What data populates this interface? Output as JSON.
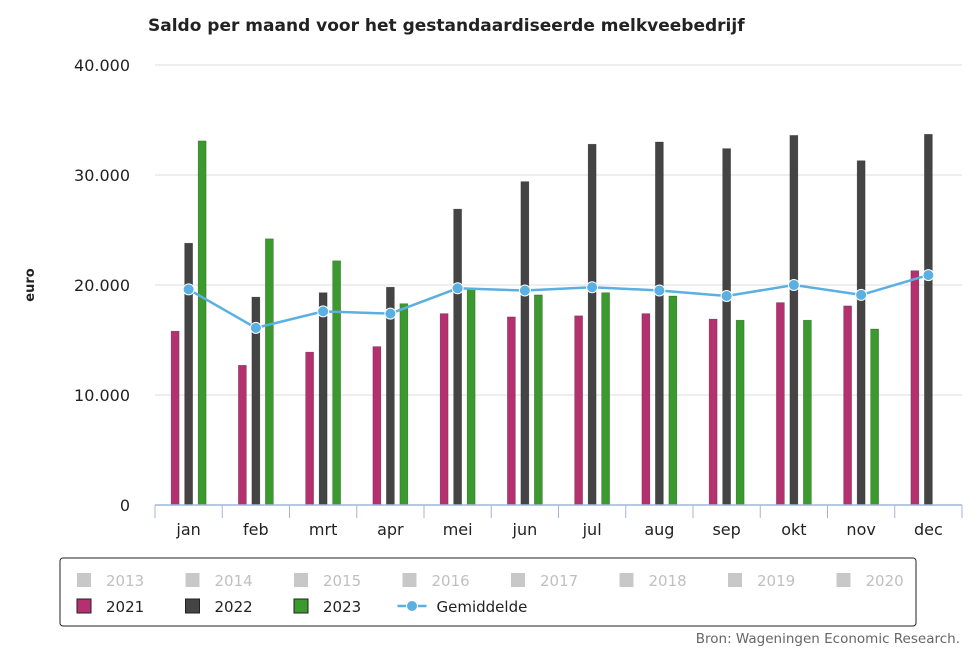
{
  "chart_data": {
    "type": "bar",
    "title": "Saldo per maand voor het gestandaardiseerde melkveebedrijf",
    "ylabel": "euro",
    "xlabel": "",
    "ylim": [
      0,
      40000
    ],
    "yticks": [
      0,
      10000,
      20000,
      30000,
      40000
    ],
    "ytick_labels": [
      "0",
      "10.000",
      "20.000",
      "30.000",
      "40.000"
    ],
    "grid": true,
    "categories": [
      "jan",
      "feb",
      "mrt",
      "apr",
      "mei",
      "jun",
      "jul",
      "aug",
      "sep",
      "okt",
      "nov",
      "dec"
    ],
    "series": [
      {
        "name": "2021",
        "type": "bar",
        "color": "#b5306e",
        "values": [
          15800,
          12700,
          13900,
          14400,
          17400,
          17100,
          17200,
          17400,
          16900,
          18400,
          18100,
          21300
        ]
      },
      {
        "name": "2022",
        "type": "bar",
        "color": "#444444",
        "values": [
          23800,
          18900,
          19300,
          19800,
          26900,
          29400,
          32800,
          33000,
          32400,
          33600,
          31300,
          33700
        ]
      },
      {
        "name": "2023",
        "type": "bar",
        "color": "#3a9a2e",
        "values": [
          33100,
          24200,
          22200,
          18300,
          19700,
          19100,
          19300,
          19000,
          16800,
          16800,
          16000,
          null
        ]
      },
      {
        "name": "Gemiddelde",
        "type": "line",
        "color": "#5ab0e2",
        "values": [
          19600,
          16100,
          17600,
          17400,
          19700,
          19500,
          19800,
          19500,
          19000,
          20000,
          19100,
          20900
        ]
      }
    ],
    "legend": {
      "placement": "bottom",
      "hidden_items": [
        "2013",
        "2014",
        "2015",
        "2016",
        "2017",
        "2018",
        "2019",
        "2020"
      ],
      "hidden_color": "#c8c8c8",
      "active_items": [
        "2021",
        "2022",
        "2023",
        "Gemiddelde"
      ]
    },
    "source": "Bron: Wageningen Economic Research."
  }
}
